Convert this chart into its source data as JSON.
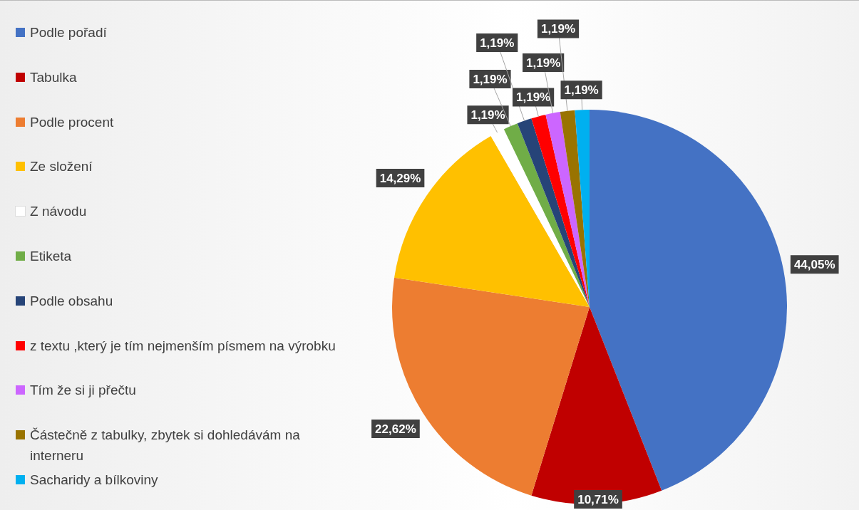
{
  "chart_data": {
    "type": "pie",
    "categories": [
      "Podle pořadí",
      "Tabulka",
      "Podle procent",
      "Ze složení",
      "Z návodu",
      "Etiketa",
      "Podle obsahu",
      "z textu ,který je tím nejmenším písmem na výrobku",
      "Tím že si ji přečtu",
      "Částečně z tabulky, zbytek si dohledávám na interneru",
      "Sacharidy a bílkoviny"
    ],
    "values": [
      44.05,
      10.71,
      22.62,
      14.29,
      1.19,
      1.19,
      1.19,
      1.19,
      1.19,
      1.19,
      1.19
    ],
    "colors": [
      "#4472c4",
      "#c00000",
      "#ed7d31",
      "#ffc000",
      "#ffffff",
      "#70ad47",
      "#264478",
      "#ff0000",
      "#cc66ff",
      "#997300",
      "#00b0f0"
    ],
    "value_labels": [
      "44,05%",
      "10,71%",
      "22,62%",
      "14,29%",
      "1,19%",
      "1,19%",
      "1,19%",
      "1,19%",
      "1,19%",
      "1,19%",
      "1,19%"
    ],
    "legend": "left"
  }
}
